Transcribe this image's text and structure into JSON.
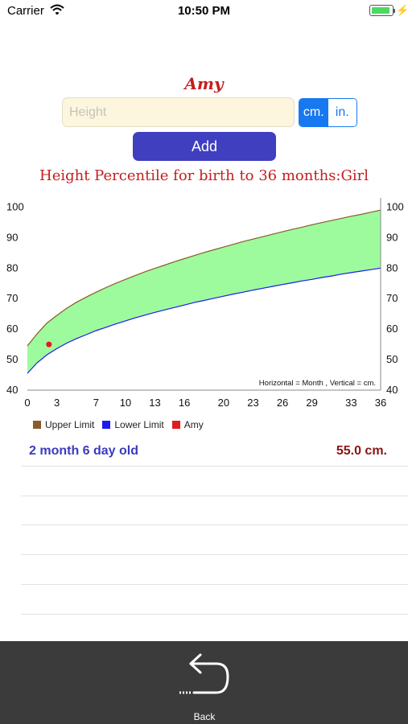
{
  "status_bar": {
    "carrier": "Carrier",
    "time": "10:50 PM",
    "battery_level": 0.9
  },
  "child_name": "Amy",
  "height_input": {
    "value": "",
    "placeholder": "Height"
  },
  "units": {
    "options": [
      "cm.",
      "in."
    ],
    "selected": "cm."
  },
  "add_label": "Add",
  "chart_heading": "Height Percentile for birth to 36 months:Girl",
  "chart_data": {
    "type": "area",
    "x": [
      0,
      1,
      2,
      3,
      4,
      5,
      6,
      7,
      8,
      9,
      10,
      11,
      12,
      13,
      14,
      15,
      16,
      17,
      18,
      19,
      20,
      21,
      22,
      23,
      24,
      25,
      26,
      27,
      28,
      29,
      30,
      31,
      32,
      33,
      34,
      35,
      36
    ],
    "series": [
      {
        "name": "Upper Limit",
        "color": "#8b5a2b",
        "values": [
          54.5,
          58.5,
          62.0,
          64.5,
          66.8,
          68.8,
          70.5,
          72.1,
          73.6,
          75.0,
          76.3,
          77.6,
          78.8,
          79.9,
          81.0,
          82.1,
          83.1,
          84.1,
          85.1,
          86.0,
          86.9,
          87.8,
          88.7,
          89.5,
          90.3,
          91.1,
          91.9,
          92.7,
          93.4,
          94.2,
          94.9,
          95.6,
          96.3,
          97.0,
          97.6,
          98.3,
          99.0
        ]
      },
      {
        "name": "Lower Limit",
        "color": "#1b1bf0",
        "values": [
          45.5,
          49.0,
          51.6,
          53.6,
          55.4,
          56.9,
          58.2,
          59.5,
          60.6,
          61.7,
          62.7,
          63.7,
          64.6,
          65.5,
          66.3,
          67.1,
          67.9,
          68.7,
          69.4,
          70.1,
          70.8,
          71.5,
          72.1,
          72.8,
          73.4,
          74.0,
          74.6,
          75.2,
          75.8,
          76.3,
          76.9,
          77.4,
          78.0,
          78.5,
          79.0,
          79.5,
          80.0
        ]
      },
      {
        "name": "Amy",
        "color": "#e31b1b",
        "points": [
          {
            "x": 2.2,
            "y": 55.0
          }
        ]
      }
    ],
    "fill_color": "#9dfb9d",
    "xticks": [
      0,
      3,
      7,
      10,
      13,
      16,
      20,
      23,
      26,
      29,
      33,
      36
    ],
    "yticks": [
      40,
      50,
      60,
      70,
      80,
      90,
      100
    ],
    "xlim": [
      0,
      36
    ],
    "ylim": [
      40,
      103
    ],
    "annotation": "Horizontal = Month , Vertical = cm.",
    "legend_position": "bottom-left"
  },
  "legend": [
    {
      "label": "Upper Limit",
      "color": "#8b5a2b"
    },
    {
      "label": "Lower Limit",
      "color": "#1b1bf0"
    },
    {
      "label": "Amy",
      "color": "#e31b1b"
    }
  ],
  "record": {
    "age": "2 month 6 day old",
    "height": "55.0 cm."
  },
  "back_label": "Back",
  "colors": {
    "name": "#c41e1e",
    "heading": "#c41e1e",
    "add_button": "#3f3fbf",
    "age_text": "#3b3bbf",
    "value_text": "#8b1414",
    "segment_accent": "#1778f0"
  }
}
